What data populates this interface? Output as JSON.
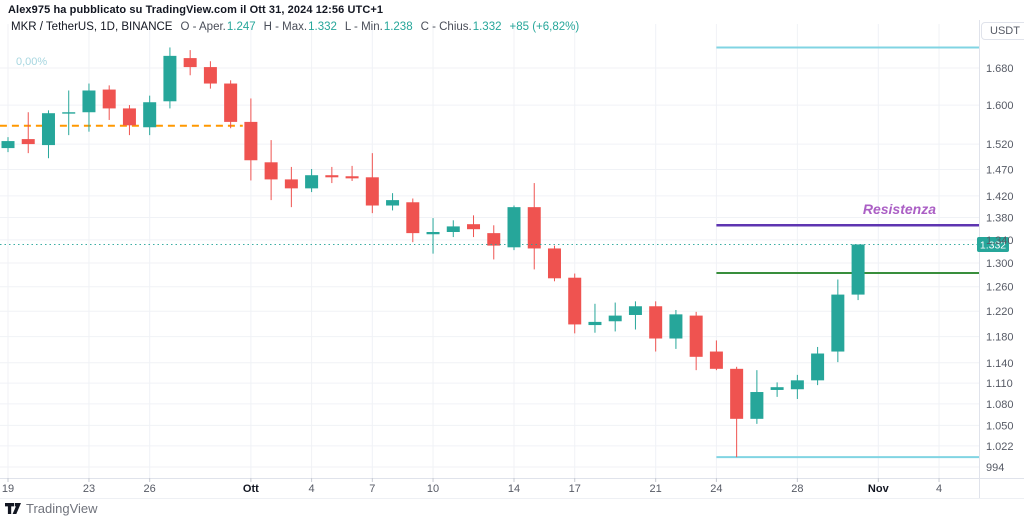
{
  "attribution": "Alex975 ha pubblicato su TradingView.com il Ott 31, 2024 12:56 UTC+1",
  "legend": {
    "symbol": "MKR / TetherUS, 1D, BINANCE",
    "fields": [
      {
        "label": "O - Aper.",
        "value": "1.247"
      },
      {
        "label": "H - Max.",
        "value": "1.332"
      },
      {
        "label": "L - Min.",
        "value": "1.238"
      },
      {
        "label": "C - Chius.",
        "value": "1.332"
      }
    ],
    "change": "+85 (+6,82%)"
  },
  "price_axis_unit": "USDT",
  "watermark_change": "0,00%",
  "logo_text": "TradingView",
  "colors": {
    "up": "#26a69a",
    "down": "#ef5350",
    "resistance_line": "#5e35b1",
    "resistance_label": "#ab5fc5",
    "support_line": "#388e3c",
    "range_line": "#81d4e3",
    "open_dash_line": "#ff9800",
    "last_price": "#26a69a",
    "grid": "#f0f2f6",
    "axis_border": "#e0e3eb",
    "tick_text": "#565a65",
    "month_text": "#131722"
  },
  "chart_data": {
    "type": "candlestick",
    "title": "MKR / TetherUS, 1D, BINANCE",
    "exchange": "BINANCE",
    "timeframe": "1D",
    "scale": "log",
    "grid": true,
    "legend_position": "top-left",
    "ylim": [
      0.9797,
      1.743
    ],
    "y_ticks": [
      {
        "price": 1.68,
        "label": "1.680"
      },
      {
        "price": 1.6,
        "label": "1.600"
      },
      {
        "price": 1.52,
        "label": "1.520"
      },
      {
        "price": 1.47,
        "label": "1.470"
      },
      {
        "price": 1.42,
        "label": "1.420"
      },
      {
        "price": 1.38,
        "label": "1.380"
      },
      {
        "price": 1.34,
        "label": "1.340"
      },
      {
        "price": 1.3,
        "label": "1.300"
      },
      {
        "price": 1.26,
        "label": "1.260"
      },
      {
        "price": 1.22,
        "label": "1.220"
      },
      {
        "price": 1.18,
        "label": "1.180"
      },
      {
        "price": 1.14,
        "label": "1.140"
      },
      {
        "price": 1.11,
        "label": "1.110"
      },
      {
        "price": 1.08,
        "label": "1.080"
      },
      {
        "price": 1.05,
        "label": "1.050"
      },
      {
        "price": 1.022,
        "label": "1.022"
      },
      {
        "price": 0.994,
        "label": "994"
      }
    ],
    "x_ticks": [
      {
        "index": 0,
        "label": "19",
        "bold": false
      },
      {
        "index": 4,
        "label": "23",
        "bold": false
      },
      {
        "index": 7,
        "label": "26",
        "bold": false
      },
      {
        "index": 12,
        "label": "Ott",
        "bold": true
      },
      {
        "index": 15,
        "label": "4",
        "bold": false
      },
      {
        "index": 18,
        "label": "7",
        "bold": false
      },
      {
        "index": 21,
        "label": "10",
        "bold": false
      },
      {
        "index": 25,
        "label": "14",
        "bold": false
      },
      {
        "index": 28,
        "label": "17",
        "bold": false
      },
      {
        "index": 32,
        "label": "21",
        "bold": false
      },
      {
        "index": 35,
        "label": "24",
        "bold": false
      },
      {
        "index": 39,
        "label": "28",
        "bold": false
      },
      {
        "index": 43,
        "label": "Nov",
        "bold": true
      },
      {
        "index": 46,
        "label": "4",
        "bold": false
      }
    ],
    "candles": [
      [
        "2024-09-19",
        1.512,
        1.534,
        1.504,
        1.526
      ],
      [
        "2024-09-20",
        1.53,
        1.585,
        1.502,
        1.52
      ],
      [
        "2024-09-21",
        1.518,
        1.589,
        1.492,
        1.583
      ],
      [
        "2024-09-22",
        1.583,
        1.631,
        1.538,
        1.585
      ],
      [
        "2024-09-23",
        1.585,
        1.646,
        1.545,
        1.631
      ],
      [
        "2024-09-24",
        1.633,
        1.642,
        1.569,
        1.593
      ],
      [
        "2024-09-25",
        1.593,
        1.6,
        1.538,
        1.558
      ],
      [
        "2024-09-26",
        1.554,
        1.62,
        1.538,
        1.606
      ],
      [
        "2024-09-27",
        1.608,
        1.726,
        1.593,
        1.707
      ],
      [
        "2024-09-28",
        1.702,
        1.72,
        1.664,
        1.682
      ],
      [
        "2024-09-29",
        1.682,
        1.695,
        1.635,
        1.646
      ],
      [
        "2024-09-30",
        1.646,
        1.653,
        1.552,
        1.565
      ],
      [
        "2024-10-01",
        1.565,
        1.614,
        1.449,
        1.488
      ],
      [
        "2024-10-02",
        1.484,
        1.528,
        1.412,
        1.451
      ],
      [
        "2024-10-03",
        1.451,
        1.475,
        1.399,
        1.434
      ],
      [
        "2024-10-04",
        1.434,
        1.471,
        1.427,
        1.459
      ],
      [
        "2024-10-05",
        1.459,
        1.475,
        1.444,
        1.455
      ],
      [
        "2024-10-06",
        1.457,
        1.477,
        1.448,
        1.453
      ],
      [
        "2024-10-07",
        1.455,
        1.502,
        1.388,
        1.402
      ],
      [
        "2024-10-08",
        1.402,
        1.425,
        1.393,
        1.412
      ],
      [
        "2024-10-09",
        1.408,
        1.415,
        1.336,
        1.352
      ],
      [
        "2024-10-10",
        1.35,
        1.379,
        1.316,
        1.354
      ],
      [
        "2024-10-11",
        1.354,
        1.375,
        1.345,
        1.364
      ],
      [
        "2024-10-12",
        1.368,
        1.384,
        1.345,
        1.359
      ],
      [
        "2024-10-13",
        1.352,
        1.366,
        1.306,
        1.33
      ],
      [
        "2024-10-14",
        1.327,
        1.402,
        1.322,
        1.399
      ],
      [
        "2024-10-15",
        1.399,
        1.444,
        1.289,
        1.325
      ],
      [
        "2024-10-16",
        1.325,
        1.33,
        1.269,
        1.274
      ],
      [
        "2024-10-17",
        1.275,
        1.282,
        1.185,
        1.199
      ],
      [
        "2024-10-18",
        1.198,
        1.232,
        1.186,
        1.203
      ],
      [
        "2024-10-19",
        1.204,
        1.234,
        1.188,
        1.213
      ],
      [
        "2024-10-20",
        1.214,
        1.236,
        1.191,
        1.228
      ],
      [
        "2024-10-21",
        1.228,
        1.236,
        1.157,
        1.177
      ],
      [
        "2024-10-22",
        1.177,
        1.222,
        1.161,
        1.215
      ],
      [
        "2024-10-23",
        1.213,
        1.219,
        1.129,
        1.149
      ],
      [
        "2024-10-24",
        1.157,
        1.174,
        1.129,
        1.131
      ],
      [
        "2024-10-25",
        1.131,
        1.134,
        1.007,
        1.059
      ],
      [
        "2024-10-26",
        1.059,
        1.129,
        1.052,
        1.097
      ],
      [
        "2024-10-27",
        1.1,
        1.111,
        1.09,
        1.104
      ],
      [
        "2024-10-28",
        1.101,
        1.122,
        1.087,
        1.114
      ],
      [
        "2024-10-29",
        1.114,
        1.164,
        1.107,
        1.154
      ],
      [
        "2024-10-30",
        1.157,
        1.272,
        1.141,
        1.247
      ],
      [
        "2024-10-31",
        1.247,
        1.332,
        1.238,
        1.332
      ]
    ],
    "last_price": {
      "value": 1.332,
      "label": "1.332"
    },
    "levels": [
      {
        "name": "open-level-dashed",
        "price": 1.557,
        "from_index": -0.4,
        "to": 11.6,
        "style": "dashed",
        "color": "#ff9800",
        "width": 2,
        "label": ""
      },
      {
        "name": "range-high-line",
        "price": 1.726,
        "from_index": 35,
        "to": "edge",
        "style": "solid",
        "color": "#81d4e3",
        "width": 2,
        "label": ""
      },
      {
        "name": "range-low-line",
        "price": 1.007,
        "from_index": 35,
        "to": "edge",
        "style": "solid",
        "color": "#81d4e3",
        "width": 2,
        "label": ""
      },
      {
        "name": "resistenza-line",
        "price": 1.366,
        "from_index": 35,
        "to": "edge",
        "style": "solid",
        "color": "#5e35b1",
        "width": 2.5,
        "label": "Resistenza"
      },
      {
        "name": "support-line",
        "price": 1.283,
        "from_index": 35,
        "to": "edge",
        "style": "solid",
        "color": "#388e3c",
        "width": 2,
        "label": ""
      }
    ]
  }
}
